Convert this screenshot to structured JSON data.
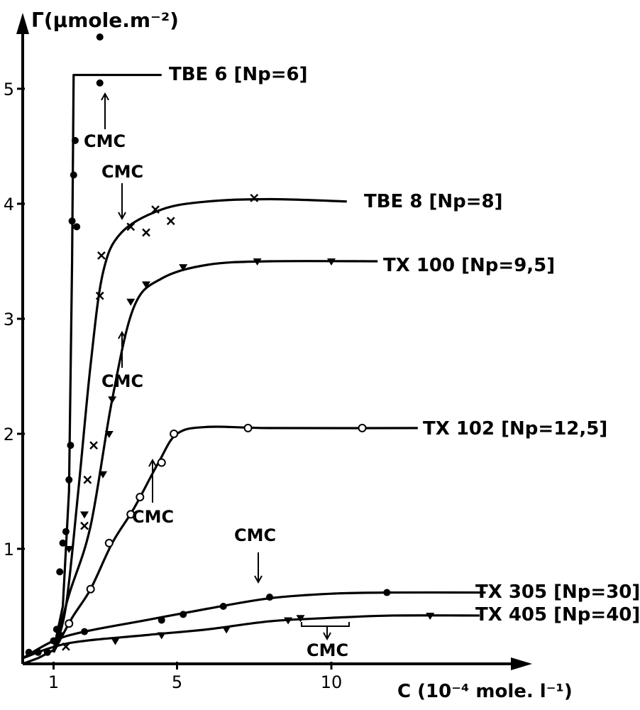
{
  "chart_data": {
    "type": "scatter",
    "ylabel": "Γ(μmole.m⁻²)",
    "xlabel": "C (10⁻⁴ mole. l⁻¹)",
    "x_ticks": [
      "1",
      "5",
      "10"
    ],
    "y_ticks": [
      "1",
      "2",
      "3",
      "4",
      "5"
    ],
    "xlim": [
      0,
      16.2
    ],
    "ylim": [
      0,
      5.6
    ],
    "grid": false,
    "legend": "inline labels",
    "series": [
      {
        "name": "TBE 6 [Np=6]",
        "marker": "filled-circle",
        "points": [
          [
            0.2,
            0.1
          ],
          [
            0.5,
            0.1
          ],
          [
            0.8,
            0.1
          ],
          [
            1.0,
            0.2
          ],
          [
            1.1,
            0.3
          ],
          [
            1.2,
            0.8
          ],
          [
            1.3,
            1.05
          ],
          [
            1.4,
            1.15
          ],
          [
            1.5,
            1.6
          ],
          [
            1.55,
            1.9
          ],
          [
            1.6,
            3.85
          ],
          [
            1.65,
            4.25
          ],
          [
            1.7,
            4.55
          ],
          [
            1.75,
            3.8
          ],
          [
            2.5,
            5.05
          ],
          [
            2.5,
            5.45
          ]
        ],
        "line": [
          [
            0.0,
            0.0
          ],
          [
            0.5,
            0.05
          ],
          [
            1.0,
            0.12
          ],
          [
            1.3,
            0.5
          ],
          [
            1.5,
            1.5
          ],
          [
            1.6,
            3.5
          ],
          [
            1.65,
            5.12
          ],
          [
            4.5,
            5.12
          ]
        ]
      },
      {
        "name": "TBE 8 [Np=8]",
        "marker": "cross",
        "points": [
          [
            1.4,
            0.15
          ],
          [
            2.0,
            1.2
          ],
          [
            2.1,
            1.6
          ],
          [
            2.3,
            1.9
          ],
          [
            2.5,
            3.2
          ],
          [
            2.55,
            3.55
          ],
          [
            3.5,
            3.8
          ],
          [
            4.0,
            3.75
          ],
          [
            4.3,
            3.95
          ],
          [
            4.8,
            3.85
          ],
          [
            7.5,
            4.05
          ]
        ],
        "line": [
          [
            1.0,
            0.1
          ],
          [
            1.4,
            0.5
          ],
          [
            1.8,
            1.5
          ],
          [
            2.2,
            2.6
          ],
          [
            2.6,
            3.4
          ],
          [
            3.2,
            3.75
          ],
          [
            4.5,
            3.95
          ],
          [
            6.0,
            4.02
          ],
          [
            8.0,
            4.04
          ],
          [
            10.5,
            4.02
          ]
        ]
      },
      {
        "name": "TX 100 [Np=9,5]",
        "marker": "filled-triangle",
        "points": [
          [
            1.5,
            1.0
          ],
          [
            2.0,
            1.3
          ],
          [
            2.6,
            1.65
          ],
          [
            2.8,
            2.0
          ],
          [
            2.9,
            2.3
          ],
          [
            3.5,
            3.15
          ],
          [
            4.0,
            3.3
          ],
          [
            5.2,
            3.45
          ],
          [
            7.6,
            3.5
          ],
          [
            10.0,
            3.5
          ]
        ],
        "line": [
          [
            1.0,
            0.1
          ],
          [
            1.5,
            0.6
          ],
          [
            2.2,
            1.2
          ],
          [
            2.9,
            2.3
          ],
          [
            3.6,
            3.1
          ],
          [
            4.5,
            3.35
          ],
          [
            6.0,
            3.47
          ],
          [
            8.0,
            3.5
          ],
          [
            11.5,
            3.5
          ]
        ]
      },
      {
        "name": "TX 102 [Np=12,5]",
        "marker": "open-circle",
        "points": [
          [
            1.5,
            0.35
          ],
          [
            2.2,
            0.65
          ],
          [
            2.8,
            1.05
          ],
          [
            3.5,
            1.3
          ],
          [
            3.8,
            1.45
          ],
          [
            4.5,
            1.75
          ],
          [
            4.9,
            2.0
          ],
          [
            7.3,
            2.05
          ],
          [
            11.0,
            2.05
          ]
        ],
        "line": [
          [
            1.0,
            0.1
          ],
          [
            1.6,
            0.4
          ],
          [
            2.2,
            0.65
          ],
          [
            2.9,
            1.05
          ],
          [
            3.6,
            1.35
          ],
          [
            4.4,
            1.75
          ],
          [
            5.0,
            2.0
          ],
          [
            6.0,
            2.06
          ],
          [
            8.0,
            2.05
          ],
          [
            12.8,
            2.05
          ]
        ]
      },
      {
        "name": "TX 305 [Np=30]",
        "marker": "filled-circle",
        "points": [
          [
            1.0,
            0.2
          ],
          [
            2.0,
            0.28
          ],
          [
            4.5,
            0.38
          ],
          [
            5.2,
            0.43
          ],
          [
            6.5,
            0.5
          ],
          [
            8.0,
            0.58
          ],
          [
            11.8,
            0.62
          ]
        ],
        "line": [
          [
            0.0,
            0.05
          ],
          [
            1.0,
            0.2
          ],
          [
            2.0,
            0.28
          ],
          [
            4.0,
            0.38
          ],
          [
            6.0,
            0.48
          ],
          [
            8.0,
            0.57
          ],
          [
            10.0,
            0.61
          ],
          [
            12.0,
            0.62
          ],
          [
            15.0,
            0.62
          ]
        ]
      },
      {
        "name": "TX 405 [Np=40]",
        "marker": "filled-triangle",
        "points": [
          [
            1.2,
            0.25
          ],
          [
            3.0,
            0.2
          ],
          [
            4.5,
            0.25
          ],
          [
            6.6,
            0.3
          ],
          [
            8.6,
            0.38
          ],
          [
            9.0,
            0.4
          ],
          [
            13.2,
            0.42
          ]
        ],
        "line": [
          [
            0.0,
            0.05
          ],
          [
            1.5,
            0.18
          ],
          [
            4.0,
            0.25
          ],
          [
            6.0,
            0.3
          ],
          [
            8.0,
            0.37
          ],
          [
            10.0,
            0.4
          ],
          [
            12.0,
            0.42
          ],
          [
            14.8,
            0.42
          ]
        ]
      }
    ],
    "annotations": [
      {
        "text": "CMC",
        "x": 2.5,
        "y": 4.85
      },
      {
        "text": "CMC",
        "x": 3.5,
        "y": 4.05
      },
      {
        "text": "CMC",
        "x": 3.5,
        "y": 3.05
      },
      {
        "text": "CMC",
        "x": 4.9,
        "y": 1.75
      },
      {
        "text": "CMC",
        "x": 7.9,
        "y": 0.75
      },
      {
        "text": "CMC",
        "x": 9.0,
        "y": 0.3
      }
    ]
  }
}
